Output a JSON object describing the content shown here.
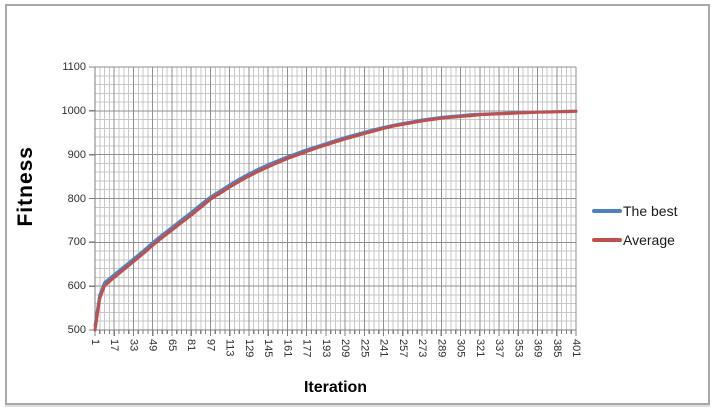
{
  "chart_data": {
    "type": "line",
    "title": "",
    "xlabel": "Iteration",
    "ylabel": "Fitness",
    "xlim": [
      1,
      401
    ],
    "ylim": [
      500,
      1100
    ],
    "y_ticks": [
      500,
      600,
      700,
      800,
      900,
      1000,
      1100
    ],
    "x_ticks": [
      1,
      17,
      33,
      49,
      65,
      81,
      97,
      113,
      129,
      145,
      161,
      177,
      193,
      209,
      225,
      241,
      257,
      273,
      289,
      305,
      321,
      337,
      353,
      369,
      385,
      401
    ],
    "grid": {
      "x_minor_step": 4,
      "x_major_step": 16,
      "y_minor_step": 20,
      "y_major_step": 100,
      "visible": true
    },
    "legend_position": "right",
    "x": [
      1,
      5,
      9,
      17,
      25,
      33,
      41,
      49,
      57,
      65,
      73,
      81,
      89,
      97,
      105,
      113,
      121,
      129,
      137,
      145,
      153,
      161,
      169,
      177,
      185,
      193,
      201,
      209,
      217,
      225,
      233,
      241,
      249,
      257,
      265,
      273,
      281,
      289,
      297,
      305,
      313,
      321,
      329,
      337,
      345,
      353,
      361,
      369,
      377,
      385,
      393,
      401
    ],
    "series": [
      {
        "name": "The best",
        "color": "#4F81BD",
        "values": [
          510,
          580,
          608,
          626,
          644,
          662,
          680,
          699,
          717,
          734,
          751,
          768,
          786,
          803,
          817,
          831,
          844,
          856,
          867,
          877,
          886,
          895,
          903,
          911,
          918,
          925,
          932,
          939,
          945,
          951,
          957,
          962,
          967,
          971,
          975,
          979,
          982,
          985,
          987,
          989,
          991,
          992,
          993,
          994,
          995,
          996,
          996,
          997,
          998,
          998,
          999,
          999
        ]
      },
      {
        "name": "Average",
        "color": "#C0504D",
        "values": [
          500,
          572,
          601,
          620,
          638,
          656,
          674,
          693,
          711,
          728,
          745,
          762,
          780,
          798,
          812,
          826,
          839,
          851,
          862,
          872,
          882,
          891,
          899,
          907,
          915,
          922,
          929,
          936,
          942,
          948,
          954,
          960,
          965,
          969,
          973,
          977,
          980,
          983,
          985,
          987,
          989,
          991,
          992,
          993,
          994,
          995,
          996,
          997,
          997,
          998,
          998,
          999
        ]
      }
    ],
    "colors": {
      "major_grid": "#8f8f8f",
      "minor_grid": "#c7c7c7",
      "axis": "#7f7f7f",
      "frame_border": "#a8a8a8"
    }
  },
  "legend": {
    "items": [
      {
        "label": "The best",
        "color": "#4F81BD"
      },
      {
        "label": "Average",
        "color": "#C0504D"
      }
    ]
  }
}
